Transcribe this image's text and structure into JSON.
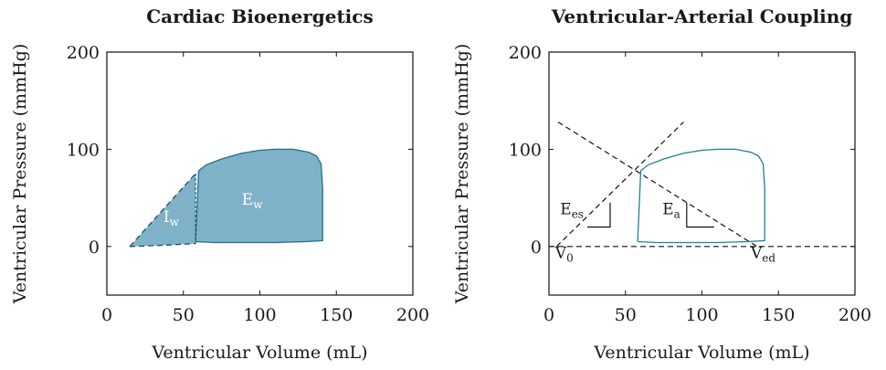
{
  "chart_data": [
    {
      "type": "area",
      "title": "Cardiac Bioenergetics",
      "xlabel": "Ventricular Volume (mL)",
      "ylabel": "Ventricular Pressure (mmHg)",
      "xlim": [
        0,
        200
      ],
      "ylim": [
        -50,
        200
      ],
      "xticks": [
        "0",
        "50",
        "100",
        "150",
        "200"
      ],
      "yticks": [
        "0",
        "100",
        "200"
      ],
      "grid": false,
      "fill_color": "#7fb2c8",
      "edge_color": "#1f6f8b",
      "series": [
        {
          "name": "PV loop",
          "points": [
            [
              58,
              5
            ],
            [
              60,
              78
            ],
            [
              65,
              84
            ],
            [
              75,
              90
            ],
            [
              88,
              96
            ],
            [
              100,
              99
            ],
            [
              110,
              100
            ],
            [
              122,
              100
            ],
            [
              132,
              97
            ],
            [
              137,
              93
            ],
            [
              140,
              85
            ],
            [
              141,
              60
            ],
            [
              141,
              6
            ],
            [
              130,
              5
            ],
            [
              110,
              4
            ],
            [
              90,
              4
            ],
            [
              70,
              4
            ],
            [
              58,
              5
            ]
          ]
        },
        {
          "name": "ESPVR",
          "points": [
            [
              15,
              0
            ],
            [
              58,
              75
            ]
          ]
        },
        {
          "name": "EDPVR",
          "points": [
            [
              15,
              0
            ],
            [
              25,
              0.5
            ],
            [
              40,
              1.5
            ],
            [
              58,
              3
            ]
          ]
        }
      ],
      "annotations": [
        {
          "base": "I",
          "sub": "w",
          "x": 42,
          "y": 25
        },
        {
          "base": "E",
          "sub": "w",
          "x": 95,
          "y": 43
        }
      ]
    },
    {
      "type": "line",
      "title": "Ventricular-Arterial Coupling",
      "xlabel": "Ventricular Volume (mL)",
      "ylabel": "Ventricular Pressure (mmHg)",
      "xlim": [
        0,
        200
      ],
      "ylim": [
        -50,
        200
      ],
      "xticks": [
        "0",
        "50",
        "100",
        "150",
        "200"
      ],
      "yticks": [
        "0",
        "100",
        "200"
      ],
      "grid": false,
      "loop_color": "#1f7f96",
      "series": [
        {
          "name": "PV loop",
          "points": [
            [
              58,
              5
            ],
            [
              60,
              78
            ],
            [
              65,
              84
            ],
            [
              75,
              90
            ],
            [
              88,
              96
            ],
            [
              100,
              99
            ],
            [
              110,
              100
            ],
            [
              122,
              100
            ],
            [
              132,
              97
            ],
            [
              137,
              93
            ],
            [
              140,
              85
            ],
            [
              141,
              60
            ],
            [
              141,
              6
            ],
            [
              130,
              5
            ],
            [
              110,
              4
            ],
            [
              90,
              4
            ],
            [
              70,
              4
            ],
            [
              58,
              5
            ]
          ]
        },
        {
          "name": "ESPVR",
          "points": [
            [
              5,
              0
            ],
            [
              88,
              128
            ]
          ]
        },
        {
          "name": "Arterial elastance",
          "points": [
            [
              6,
              128
            ],
            [
              136,
              0
            ]
          ]
        },
        {
          "name": "Baseline",
          "points": [
            [
              0,
              0
            ],
            [
              200,
              0
            ]
          ]
        }
      ],
      "slope_markers": [
        {
          "points": [
            [
              25,
              20
            ],
            [
              40,
              20
            ],
            [
              40,
              45
            ]
          ]
        },
        {
          "points": [
            [
              90,
              45
            ],
            [
              90,
              20
            ],
            [
              108,
              20
            ]
          ]
        }
      ],
      "annotations": [
        {
          "base": "E",
          "sub": "es",
          "x": 15,
          "y": 33
        },
        {
          "base": "E",
          "sub": "a",
          "x": 80,
          "y": 33
        },
        {
          "base": "V",
          "sub": "0",
          "x": 10,
          "y": -12
        },
        {
          "base": "V",
          "sub": "ed",
          "x": 140,
          "y": -12
        }
      ]
    }
  ]
}
